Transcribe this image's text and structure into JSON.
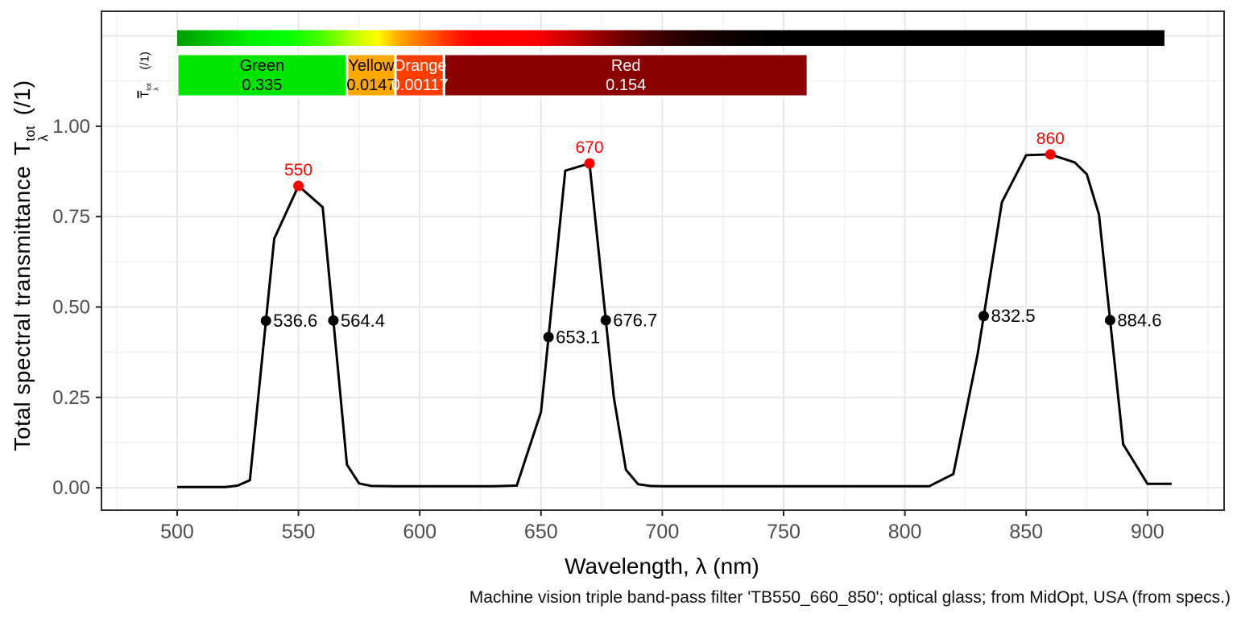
{
  "figure": {
    "caption": "Machine vision triple band-pass filter 'TB550_660_850'; optical glass; from MidOpt, USA (from specs.)"
  },
  "axes": {
    "x_title": "Wavelength, λ (nm)",
    "y_title_prefix": "Total spectral transmittance",
    "y_symbol": "T",
    "y_sup": "tot",
    "y_sub": "λ",
    "y_unit": "(/1)"
  },
  "mean_label": {
    "symbol": "T",
    "sup": "tot",
    "sub": "λ",
    "unit": "(/1)"
  },
  "style": {
    "line_color": "#000000",
    "peak_color": "#FF0000",
    "grid_major": "#E3E3E3",
    "grid_minor": "#F0F0F0",
    "panel_border": "#2E2E2E",
    "tick_color": "#222222",
    "tick_label_color": "#4D4D4D"
  },
  "chart_data": {
    "type": "line",
    "title": "",
    "xlabel": "Wavelength, λ (nm)",
    "ylabel": "Total spectral transmittance T_λ^tot (/1)",
    "xlim": [
      468.8,
      931.6
    ],
    "ylim": [
      -0.062,
      1.318
    ],
    "grid": "on",
    "x_ticks": [
      500,
      550,
      600,
      650,
      700,
      750,
      800,
      850,
      900
    ],
    "x_tick_labels": [
      "500",
      "550",
      "600",
      "650",
      "700",
      "750",
      "800",
      "850",
      "900"
    ],
    "x_minor": [
      475,
      525,
      575,
      625,
      675,
      725,
      775,
      825,
      875,
      925
    ],
    "y_ticks": [
      0,
      0.25,
      0.5,
      0.75,
      1.0
    ],
    "y_tick_labels": [
      "0.00",
      "0.25",
      "0.50",
      "0.75",
      "1.00"
    ],
    "y_grid_major": [
      0,
      0.25,
      0.5,
      0.75,
      1.0,
      1.25
    ],
    "y_minor": [
      0.125,
      0.375,
      0.625,
      0.875,
      1.125
    ],
    "series": [
      {
        "name": "total spectral transmittance",
        "points": [
          [
            500,
            0.002
          ],
          [
            505,
            0.002
          ],
          [
            510,
            0.002
          ],
          [
            515,
            0.002
          ],
          [
            520,
            0.002
          ],
          [
            525,
            0.006
          ],
          [
            530,
            0.021
          ],
          [
            540,
            0.689
          ],
          [
            550,
            0.835
          ],
          [
            560,
            0.776
          ],
          [
            570,
            0.064
          ],
          [
            575,
            0.012
          ],
          [
            580,
            0.005
          ],
          [
            590,
            0.004
          ],
          [
            600,
            0.004
          ],
          [
            610,
            0.004
          ],
          [
            620,
            0.004
          ],
          [
            630,
            0.004
          ],
          [
            640,
            0.006
          ],
          [
            650,
            0.21
          ],
          [
            660,
            0.877
          ],
          [
            670,
            0.897
          ],
          [
            680,
            0.25
          ],
          [
            685,
            0.05
          ],
          [
            690,
            0.01
          ],
          [
            695,
            0.005
          ],
          [
            700,
            0.004
          ],
          [
            710,
            0.004
          ],
          [
            720,
            0.004
          ],
          [
            730,
            0.004
          ],
          [
            740,
            0.004
          ],
          [
            750,
            0.004
          ],
          [
            760,
            0.004
          ],
          [
            770,
            0.004
          ],
          [
            780,
            0.004
          ],
          [
            790,
            0.004
          ],
          [
            800,
            0.004
          ],
          [
            810,
            0.004
          ],
          [
            820,
            0.038
          ],
          [
            830,
            0.37
          ],
          [
            840,
            0.79
          ],
          [
            850,
            0.92
          ],
          [
            860,
            0.922
          ],
          [
            870,
            0.9
          ],
          [
            875,
            0.867
          ],
          [
            880,
            0.756
          ],
          [
            890,
            0.12
          ],
          [
            900,
            0.011
          ],
          [
            910,
            0.011
          ]
        ]
      }
    ],
    "peaks": [
      {
        "x": 550,
        "y": 0.835,
        "label": "550"
      },
      {
        "x": 670,
        "y": 0.897,
        "label": "670"
      },
      {
        "x": 860,
        "y": 0.922,
        "label": "860"
      }
    ],
    "half_max_points": [
      {
        "x": 536.6,
        "label": "536.6"
      },
      {
        "x": 564.4,
        "label": "564.4"
      },
      {
        "x": 653.1,
        "label": "653.1"
      },
      {
        "x": 676.7,
        "label": "676.7"
      },
      {
        "x": 832.5,
        "label": "832.5"
      },
      {
        "x": 884.6,
        "label": "884.6"
      }
    ],
    "bands": [
      {
        "name": "Green",
        "value": "0.335",
        "from": 500,
        "to": 570,
        "color": "#00E600",
        "text_color": "#000000"
      },
      {
        "name": "Yellow",
        "value": "0.0147",
        "from": 570,
        "to": 590,
        "color": "#FFA800",
        "text_color": "#000000"
      },
      {
        "name": "Orange",
        "value": "0.00117",
        "from": 590,
        "to": 610,
        "color": "#FF3D00",
        "text_color": "#FFFFFF"
      },
      {
        "name": "Red",
        "value": "0.154",
        "from": 610,
        "to": 760,
        "color": "#8B0000",
        "text_color": "#FFFFFF"
      }
    ],
    "spectrum_gradient": {
      "from": 500,
      "to": 907,
      "stops": [
        {
          "offset": 0.0,
          "color": "#009C00"
        },
        {
          "offset": 0.037,
          "color": "#00C800"
        },
        {
          "offset": 0.074,
          "color": "#00F000"
        },
        {
          "offset": 0.111,
          "color": "#00FF00"
        },
        {
          "offset": 0.143,
          "color": "#40FF00"
        },
        {
          "offset": 0.167,
          "color": "#90FF00"
        },
        {
          "offset": 0.187,
          "color": "#D8FF00"
        },
        {
          "offset": 0.204,
          "color": "#FFFA00"
        },
        {
          "offset": 0.221,
          "color": "#FFB400"
        },
        {
          "offset": 0.241,
          "color": "#FF8000"
        },
        {
          "offset": 0.261,
          "color": "#FF5000"
        },
        {
          "offset": 0.28,
          "color": "#FF2000"
        },
        {
          "offset": 0.3,
          "color": "#FF0000"
        },
        {
          "offset": 0.364,
          "color": "#FA0000"
        },
        {
          "offset": 0.398,
          "color": "#C80000"
        },
        {
          "offset": 0.433,
          "color": "#8B0000"
        },
        {
          "offset": 0.472,
          "color": "#500000"
        },
        {
          "offset": 0.506,
          "color": "#2C0000"
        },
        {
          "offset": 0.55,
          "color": "#100000"
        },
        {
          "offset": 0.6,
          "color": "#000000"
        },
        {
          "offset": 1.0,
          "color": "#000000"
        }
      ]
    }
  }
}
